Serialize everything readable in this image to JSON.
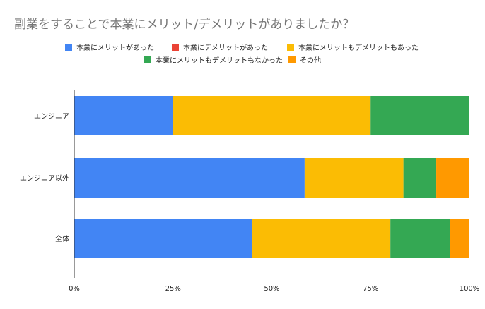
{
  "chart_data": {
    "type": "bar",
    "orientation": "horizontal",
    "stacked": "percent",
    "title": "副業をすることで本業にメリット/デメリットがありましたか？",
    "categories": [
      "エンジニア",
      "エンジニア以外",
      "全体"
    ],
    "series": [
      {
        "name": "本業にメリットがあった",
        "color": "#4285f4",
        "values": [
          25,
          58.3,
          45
        ]
      },
      {
        "name": "本業にデメリットがあった",
        "color": "#ea4335",
        "values": [
          0,
          0,
          0
        ]
      },
      {
        "name": "本業にメリットもデメリットもあった",
        "color": "#fbbc04",
        "values": [
          50,
          25,
          35
        ]
      },
      {
        "name": "本業にメリットもデメリットもなかった",
        "color": "#34a853",
        "values": [
          25,
          8.3,
          15
        ]
      },
      {
        "name": "その他",
        "color": "#ff9900",
        "values": [
          0,
          8.4,
          5
        ]
      }
    ],
    "xticks": [
      "0%",
      "25%",
      "50%",
      "75%",
      "100%"
    ],
    "xlim": [
      0,
      100
    ],
    "legend": "top",
    "grid": false
  }
}
